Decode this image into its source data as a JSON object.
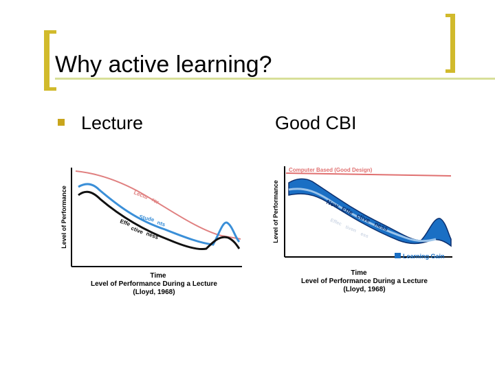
{
  "slide": {
    "title": "Why active learning?",
    "bullet_label": "Lecture",
    "right_label": "Good CBI"
  },
  "chart_data": [
    {
      "type": "line",
      "title": "Level of Performance During a Lecture",
      "citation": "(Lloyd, 1968)",
      "xlabel": "Time",
      "ylabel": "Level of Performance",
      "series": [
        {
          "name": "Lecturer",
          "curve_labels": [
            "Lectu",
            "rer"
          ]
        },
        {
          "name": "Students",
          "curve_labels": [
            "Stude",
            "nts"
          ]
        },
        {
          "name": "Effectiveness",
          "curve_labels": [
            "Effe",
            "ctive",
            "ness"
          ]
        }
      ],
      "colors": {
        "lecturer": "#e08080",
        "students": "#3a8fd8",
        "effectiveness": "#111111"
      }
    },
    {
      "type": "area",
      "title": "Level of Performance During a Lecture",
      "citation": "(Lloyd, 1968)",
      "xlabel": "Time",
      "ylabel": "Level of Performance",
      "series": [
        {
          "name": "Computer Based (Good Design)"
        },
        {
          "name": "New Effectiveness",
          "curve_labels": [
            "New",
            "Effe",
            "ctive",
            "ness"
          ]
        },
        {
          "name": "Effectiveness",
          "curve_labels": [
            "Effec",
            "tiven",
            "ess"
          ]
        }
      ],
      "legend": "Learning Gain",
      "colors": {
        "computer_based": "#e07070",
        "learning_gain": "#1a6fc4",
        "new_effectiveness": "#0c2f6e"
      }
    }
  ]
}
